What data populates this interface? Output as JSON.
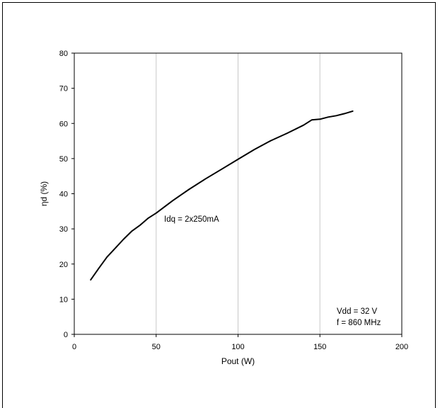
{
  "chart_data": {
    "type": "line",
    "xlabel": "Pout  (W)",
    "ylabel": "ηd (%)",
    "xlim": [
      0,
      200
    ],
    "ylim": [
      0,
      80
    ],
    "x_ticks": [
      0,
      50,
      100,
      150,
      200
    ],
    "y_ticks": [
      0,
      10,
      20,
      30,
      40,
      50,
      60,
      70,
      80
    ],
    "grid": true,
    "series": [
      {
        "name": "",
        "x": [
          10,
          15,
          20,
          25,
          30,
          35,
          40,
          45,
          50,
          60,
          70,
          80,
          90,
          100,
          110,
          120,
          130,
          140,
          145,
          150,
          155,
          160,
          165,
          170
        ],
        "y": [
          15.5,
          18.8,
          22,
          24.5,
          27,
          29.3,
          31,
          33,
          34.5,
          38,
          41.2,
          44.2,
          47,
          49.8,
          52.6,
          55.1,
          57.2,
          59.5,
          61,
          61.2,
          61.8,
          62.2,
          62.8,
          63.5
        ]
      }
    ],
    "annotations": [
      {
        "text": "Idq =  2x250mA"
      },
      {
        "text": "Vdd = 32 V"
      },
      {
        "text": "f = 860 MHz"
      }
    ]
  }
}
